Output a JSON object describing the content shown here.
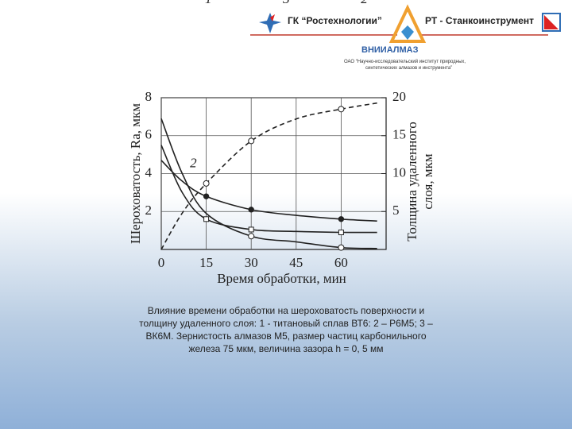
{
  "header": {
    "left_logo": "ГК “Ростехнологии”",
    "right_logo": "РТ - Станкоинструмент",
    "institute": "ВНИИАЛМАЗ",
    "institute_lines": [
      "ОАО “Научно-исследовательский институт природных,",
      "синтетических алмазов и инструмента”"
    ]
  },
  "chart_data": {
    "type": "line",
    "x_label": "Время обработки, мин",
    "y_label": "Шероховатость, Ra, мкм",
    "y2_label": [
      "Толщина удаленного",
      "слоя, мкм"
    ],
    "xlim": [
      0,
      75
    ],
    "xticks": [
      0,
      15,
      30,
      45,
      60
    ],
    "ylim": [
      0,
      8
    ],
    "yticks": [
      2,
      4,
      6,
      8
    ],
    "y2lim": [
      0,
      20
    ],
    "y2ticks": [
      5,
      10,
      15,
      20
    ],
    "grid": true,
    "series": [
      {
        "name": "2",
        "color": "#222222",
        "dashed": false,
        "marker": "open-circle",
        "marker_x": [
          30,
          60
        ],
        "x": [
          0,
          7,
          15,
          30,
          45,
          60,
          72
        ],
        "values": [
          6.9,
          4.0,
          1.9,
          0.7,
          0.4,
          0.1,
          0.05
        ],
        "label_x": 7
      },
      {
        "name": "1",
        "color": "#222222",
        "dashed": false,
        "marker": "square",
        "marker_x": [
          15,
          30,
          60
        ],
        "x": [
          0,
          7,
          15,
          30,
          45,
          60,
          72
        ],
        "values": [
          5.5,
          3.0,
          1.6,
          1.05,
          0.95,
          0.9,
          0.9
        ],
        "label_x": 12
      },
      {
        "name": "3",
        "color": "#222222",
        "dashed": false,
        "marker": "dot",
        "marker_x": [
          15,
          30,
          60
        ],
        "x": [
          0,
          7,
          15,
          30,
          45,
          60,
          72
        ],
        "values": [
          4.7,
          3.6,
          2.8,
          2.1,
          1.8,
          1.6,
          1.5
        ],
        "label_x": 38
      },
      {
        "name": "2",
        "color": "#222222",
        "dashed": true,
        "axis": "y2",
        "marker": "open-circle",
        "marker_x": [
          15,
          30,
          60
        ],
        "x": [
          0,
          7,
          15,
          30,
          45,
          60,
          72
        ],
        "values": [
          0,
          4.8,
          8.7,
          14.3,
          17.2,
          18.5,
          19.3
        ],
        "label_x": 64
      }
    ]
  },
  "caption": "Влияние времени обработки на шероховатость поверхности и толщину удаленного слоя: 1 - титановый сплав ВТ6: 2 – Р6М5; 3 – ВК6М. Зернистость алмазов М5, размер частиц карбонильного железа 75 мкм, величина зазора h = 0, 5 мм"
}
